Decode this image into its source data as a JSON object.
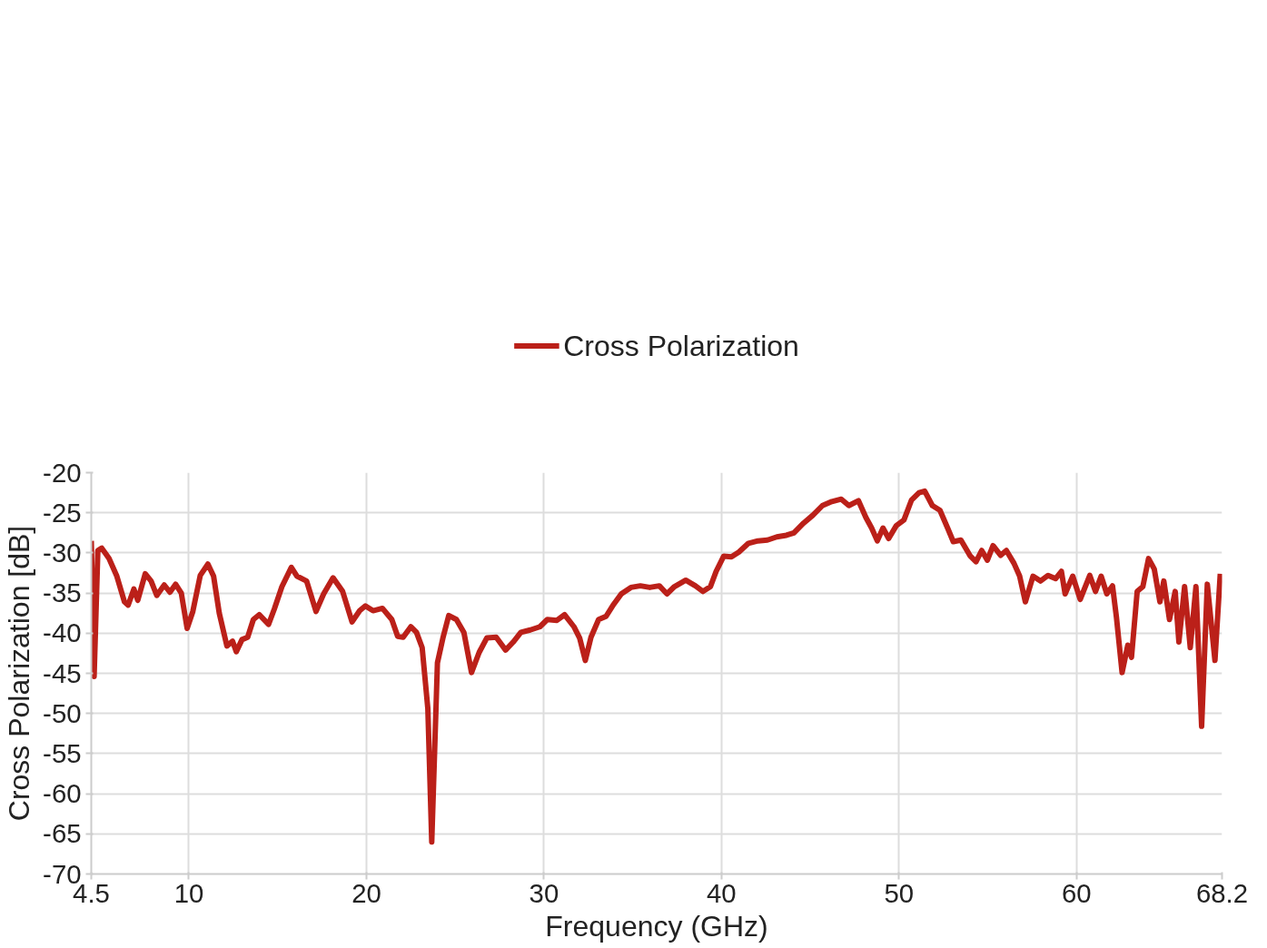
{
  "chart_data": {
    "type": "line",
    "xlabel": "Frequency (GHz)",
    "ylabel": "Cross Polarization [dB]",
    "xlim": [
      4.5,
      68.2
    ],
    "ylim": [
      -70,
      -20
    ],
    "xticks": [
      4.5,
      10,
      20,
      30,
      40,
      50,
      60,
      68.2
    ],
    "yticks": [
      -70,
      -65,
      -60,
      -55,
      -50,
      -45,
      -40,
      -35,
      -30,
      -25,
      -20
    ],
    "grid": true,
    "legend": "top",
    "line_style": "solid",
    "marker": "none",
    "series": [
      {
        "name": "Cross Polarization",
        "color": "#bb2019",
        "x": [
          4.5,
          4.66,
          4.87,
          5.09,
          5.5,
          5.94,
          6.37,
          6.58,
          6.9,
          7.12,
          7.54,
          7.87,
          8.19,
          8.61,
          8.93,
          9.25,
          9.57,
          9.9,
          10.22,
          10.64,
          11.07,
          11.39,
          11.71,
          12.14,
          12.46,
          12.67,
          12.99,
          13.31,
          13.63,
          13.96,
          14.49,
          14.81,
          15.24,
          15.77,
          16.09,
          16.63,
          17.16,
          17.59,
          18.12,
          18.66,
          19.19,
          19.62,
          19.94,
          20.37,
          20.9,
          21.43,
          21.76,
          22.07,
          22.5,
          22.82,
          23.14,
          23.46,
          23.68,
          24.0,
          24.32,
          24.64,
          25.07,
          25.49,
          25.92,
          26.35,
          26.78,
          27.31,
          27.84,
          28.27,
          28.7,
          29.23,
          29.77,
          30.19,
          30.73,
          31.16,
          31.69,
          32.01,
          32.33,
          32.65,
          33.08,
          33.5,
          33.93,
          34.36,
          34.9,
          35.43,
          35.96,
          36.5,
          36.93,
          37.35,
          37.99,
          38.53,
          38.96,
          39.38,
          39.7,
          40.13,
          40.56,
          40.98,
          41.52,
          42.05,
          42.59,
          43.12,
          43.66,
          44.08,
          44.62,
          45.15,
          45.69,
          46.22,
          46.75,
          47.18,
          47.72,
          48.14,
          48.46,
          48.78,
          49.1,
          49.42,
          49.85,
          50.28,
          50.71,
          51.13,
          51.45,
          51.88,
          52.31,
          52.74,
          53.06,
          53.49,
          54.02,
          54.34,
          54.66,
          54.98,
          55.3,
          55.73,
          56.05,
          56.48,
          56.8,
          57.12,
          57.55,
          57.97,
          58.4,
          58.83,
          59.15,
          59.36,
          59.79,
          60.21,
          60.75,
          61.07,
          61.39,
          61.71,
          62.03,
          62.25,
          62.57,
          62.89,
          63.1,
          63.42,
          63.74,
          64.06,
          64.38,
          64.7,
          64.92,
          65.24,
          65.56,
          65.77,
          66.09,
          66.41,
          66.73,
          67.05,
          67.37,
          67.8,
          68.1
        ],
        "values": [
          -28.5,
          -45.4,
          -29.7,
          -29.4,
          -30.7,
          -32.9,
          -36.1,
          -36.5,
          -34.5,
          -35.9,
          -32.6,
          -33.5,
          -35.3,
          -34.0,
          -34.9,
          -33.9,
          -35.0,
          -39.4,
          -37.3,
          -32.8,
          -31.4,
          -32.9,
          -37.5,
          -41.6,
          -41.0,
          -42.3,
          -40.8,
          -40.5,
          -38.3,
          -37.7,
          -38.9,
          -37.0,
          -34.2,
          -31.8,
          -32.9,
          -33.5,
          -37.3,
          -35.1,
          -33.1,
          -34.8,
          -38.6,
          -37.2,
          -36.6,
          -37.2,
          -36.9,
          -38.3,
          -40.4,
          -40.5,
          -39.2,
          -39.9,
          -41.8,
          -49.4,
          -66.0,
          -43.7,
          -40.5,
          -37.8,
          -38.3,
          -39.9,
          -44.9,
          -42.4,
          -40.6,
          -40.5,
          -42.1,
          -41.1,
          -39.9,
          -39.6,
          -39.2,
          -38.3,
          -38.4,
          -37.7,
          -39.2,
          -40.6,
          -43.4,
          -40.5,
          -38.3,
          -37.9,
          -36.4,
          -35.1,
          -34.3,
          -34.1,
          -34.3,
          -34.1,
          -35.1,
          -34.2,
          -33.4,
          -34.1,
          -34.8,
          -34.2,
          -32.3,
          -30.4,
          -30.5,
          -29.9,
          -28.8,
          -28.5,
          -28.4,
          -28.0,
          -27.8,
          -27.5,
          -26.3,
          -25.3,
          -24.1,
          -23.6,
          -23.3,
          -24.1,
          -23.5,
          -25.6,
          -26.9,
          -28.5,
          -26.9,
          -28.2,
          -26.6,
          -25.9,
          -23.4,
          -22.5,
          -22.3,
          -24.1,
          -24.7,
          -26.9,
          -28.6,
          -28.4,
          -30.4,
          -31.1,
          -29.7,
          -30.9,
          -29.1,
          -30.3,
          -29.7,
          -31.3,
          -32.9,
          -36.1,
          -32.9,
          -33.5,
          -32.8,
          -33.2,
          -32.3,
          -35.1,
          -32.9,
          -35.8,
          -32.8,
          -34.8,
          -32.9,
          -35.1,
          -34.1,
          -38.0,
          -44.9,
          -41.5,
          -43.0,
          -34.8,
          -34.2,
          -30.7,
          -32.0,
          -36.1,
          -33.5,
          -38.3,
          -34.8,
          -41.1,
          -34.2,
          -41.8,
          -34.2,
          -51.6,
          -33.9,
          -43.4,
          -32.6
        ]
      }
    ]
  }
}
